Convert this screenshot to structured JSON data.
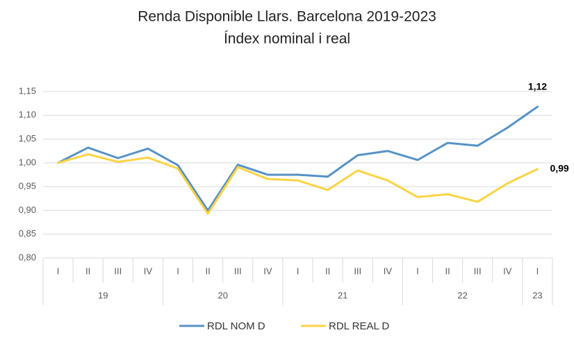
{
  "chart_data": {
    "type": "line",
    "title": "Renda Disponible Llars. Barcelona 2019-2023",
    "subtitle": "Índex nominal i real",
    "categories": [
      "I",
      "II",
      "III",
      "IV",
      "I",
      "II",
      "III",
      "IV",
      "I",
      "II",
      "III",
      "IV",
      "I",
      "II",
      "III",
      "IV",
      "I"
    ],
    "category_groups": [
      "19",
      "19",
      "19",
      "19",
      "20",
      "20",
      "20",
      "20",
      "21",
      "21",
      "21",
      "21",
      "22",
      "22",
      "22",
      "22",
      "23"
    ],
    "series": [
      {
        "name": "RDL NOM D",
        "color": "#5592c6",
        "values": [
          1.0,
          1.032,
          1.01,
          1.03,
          0.995,
          0.9,
          0.996,
          0.975,
          0.975,
          0.971,
          1.016,
          1.025,
          1.006,
          1.042,
          1.036,
          1.074,
          1.118
        ],
        "value_labels": [
          null,
          null,
          null,
          null,
          null,
          null,
          null,
          null,
          null,
          null,
          null,
          null,
          null,
          null,
          null,
          null,
          "1,12"
        ]
      },
      {
        "name": "RDL REAL D",
        "color": "#fdd343",
        "values": [
          1.0,
          1.018,
          1.002,
          1.011,
          0.988,
          0.893,
          0.991,
          0.966,
          0.963,
          0.943,
          0.984,
          0.963,
          0.928,
          0.934,
          0.918,
          0.957,
          0.987
        ],
        "value_labels": [
          null,
          null,
          null,
          null,
          null,
          null,
          null,
          null,
          null,
          null,
          null,
          null,
          null,
          null,
          null,
          null,
          "0,99"
        ]
      }
    ],
    "ylim": [
      0.8,
      1.15
    ],
    "yticks": [
      {
        "value": 0.8,
        "label": "0,80"
      },
      {
        "value": 0.85,
        "label": "0,85"
      },
      {
        "value": 0.9,
        "label": "0,90"
      },
      {
        "value": 0.95,
        "label": "0,95"
      },
      {
        "value": 1.0,
        "label": "1,00"
      },
      {
        "value": 1.05,
        "label": "1,05"
      },
      {
        "value": 1.1,
        "label": "1,10"
      },
      {
        "value": 1.15,
        "label": "1,15"
      }
    ],
    "grid": true,
    "legend": "bottom"
  }
}
